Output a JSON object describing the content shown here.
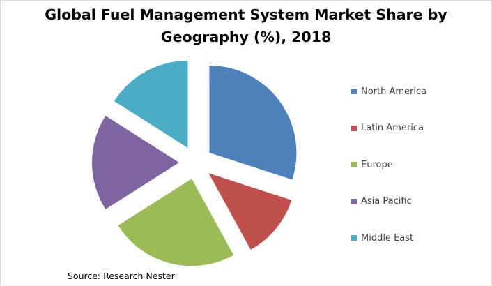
{
  "chart_data": {
    "type": "pie",
    "title": "Global Fuel Management System Market Share by Geography (%), 2018",
    "categories": [
      "North America",
      "Latin America",
      "Europe",
      "Asia Pacific",
      "Middle East"
    ],
    "values": [
      30,
      12,
      24,
      18,
      16
    ],
    "unit": "%",
    "colors": [
      "#4F81BD",
      "#C0504D",
      "#9BBB59",
      "#8064A2",
      "#4BACC6"
    ],
    "exploded": true,
    "legend": "right",
    "source": "Source: Research Nester"
  }
}
